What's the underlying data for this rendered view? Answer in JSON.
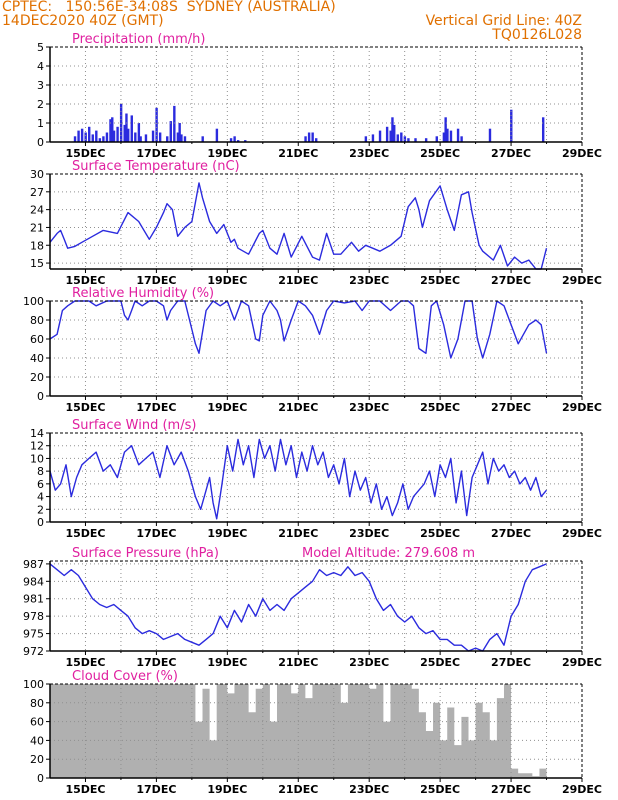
{
  "header": {
    "source": "CPTEC:",
    "location": "150:56E-34:08S  SYDNEY (AUSTRALIA)",
    "datetime": "14DEC2020 40Z (GMT)",
    "grid_note": "Vertical Grid Line: 40Z",
    "model": "TQ0126L028"
  },
  "colors": {
    "line": "#2b2bde",
    "bar": "#2b2bde",
    "cloud": "#b0b0b0",
    "title": "#e020a0",
    "header": "#e07000",
    "grid": "#909090",
    "frame": "#000000"
  },
  "time_axis": {
    "start": "14DEC",
    "end": "29DEC",
    "tick_labels": [
      "15DEC",
      "17DEC",
      "19DEC",
      "21DEC",
      "23DEC",
      "25DEC",
      "27DEC",
      "29DEC"
    ]
  },
  "chart_data": [
    {
      "type": "bar",
      "title": "Precipitation (mm/h)",
      "ylim": [
        0,
        5
      ],
      "yticks": [
        0,
        1,
        2,
        3,
        4,
        5
      ],
      "grid": true,
      "x": [
        0.7,
        0.8,
        0.9,
        1.0,
        1.1,
        1.2,
        1.3,
        1.4,
        1.5,
        1.6,
        1.7,
        1.75,
        1.8,
        1.9,
        2.0,
        2.1,
        2.15,
        2.2,
        2.3,
        2.4,
        2.5,
        2.55,
        2.7,
        2.9,
        3.0,
        3.1,
        3.3,
        3.4,
        3.5,
        3.6,
        3.65,
        3.7,
        3.8,
        4.3,
        4.7,
        5.1,
        5.2,
        5.3,
        5.5,
        7.2,
        7.3,
        7.4,
        7.5,
        8.9,
        9.1,
        9.3,
        9.5,
        9.6,
        9.65,
        9.7,
        9.8,
        9.9,
        10.0,
        10.1,
        10.3,
        10.6,
        10.9,
        11.1,
        11.15,
        11.2,
        11.3,
        11.5,
        11.6,
        12.4,
        13.0,
        13.9
      ],
      "values": [
        0.3,
        0.6,
        0.7,
        0.5,
        0.8,
        0.4,
        0.6,
        0.2,
        0.3,
        0.5,
        1.2,
        1.3,
        0.6,
        0.8,
        2.0,
        0.9,
        1.5,
        0.7,
        1.4,
        0.5,
        1.0,
        0.3,
        0.4,
        0.6,
        1.8,
        0.5,
        0.3,
        1.1,
        1.9,
        0.5,
        1.0,
        0.4,
        0.3,
        0.3,
        0.7,
        0.2,
        0.3,
        0.1,
        0.1,
        0.3,
        0.5,
        0.5,
        0.2,
        0.3,
        0.4,
        0.6,
        0.8,
        0.6,
        1.3,
        0.9,
        0.4,
        0.5,
        0.3,
        0.2,
        0.2,
        0.2,
        0.3,
        0.5,
        1.3,
        0.7,
        0.6,
        0.7,
        0.3,
        0.7,
        1.7,
        1.3
      ]
    },
    {
      "type": "line",
      "title": "Surface Temperature (nC)",
      "ylim": [
        14,
        30
      ],
      "yticks": [
        15,
        18,
        21,
        24,
        27,
        30
      ],
      "grid": true,
      "x": [
        0,
        0.2,
        0.3,
        0.4,
        0.5,
        0.7,
        0.9,
        1.2,
        1.5,
        1.9,
        2.2,
        2.5,
        2.8,
        3.0,
        3.2,
        3.3,
        3.45,
        3.6,
        3.8,
        4.0,
        4.2,
        4.3,
        4.5,
        4.7,
        4.9,
        5.1,
        5.2,
        5.3,
        5.6,
        5.9,
        6.0,
        6.2,
        6.4,
        6.6,
        6.8,
        7.1,
        7.4,
        7.6,
        7.8,
        8.0,
        8.2,
        8.5,
        8.7,
        8.9,
        9.1,
        9.3,
        9.6,
        9.9,
        10.1,
        10.3,
        10.4,
        10.5,
        10.7,
        11.0,
        11.2,
        11.4,
        11.6,
        11.8,
        11.9,
        12.1,
        12.2,
        12.5,
        12.7,
        12.9,
        13.1,
        13.3,
        13.5,
        13.7,
        13.85,
        14.0
      ],
      "values": [
        18.5,
        20.0,
        20.5,
        19.0,
        17.5,
        17.8,
        18.5,
        19.5,
        20.5,
        20.0,
        23.5,
        22.0,
        19.0,
        21.0,
        23.5,
        25.0,
        24.0,
        19.5,
        21.0,
        22.0,
        28.5,
        26.0,
        22.0,
        20.0,
        21.5,
        18.5,
        19.0,
        17.5,
        16.5,
        20.0,
        20.5,
        17.5,
        16.5,
        20.0,
        16.0,
        19.5,
        16.0,
        15.5,
        20.0,
        16.5,
        16.5,
        18.5,
        17.0,
        18.0,
        17.5,
        17.0,
        18.0,
        19.5,
        24.5,
        26.0,
        24.0,
        21.0,
        25.5,
        28.0,
        24.0,
        20.5,
        26.5,
        27.0,
        23.5,
        18.0,
        17.0,
        15.5,
        18.0,
        14.5,
        16.0,
        15.0,
        15.5,
        14.0,
        14.0,
        17.5
      ]
    },
    {
      "type": "line",
      "title": "Relative Humidity (%)",
      "ylim": [
        0,
        100
      ],
      "yticks": [
        0,
        20,
        40,
        60,
        80,
        100
      ],
      "grid": true,
      "x": [
        0,
        0.2,
        0.35,
        0.5,
        0.7,
        0.9,
        1.1,
        1.3,
        1.6,
        2.0,
        2.1,
        2.2,
        2.3,
        2.4,
        2.6,
        2.8,
        3.0,
        3.2,
        3.3,
        3.4,
        3.6,
        3.8,
        4.0,
        4.1,
        4.2,
        4.4,
        4.6,
        4.8,
        5.0,
        5.2,
        5.4,
        5.6,
        5.8,
        5.9,
        6.0,
        6.2,
        6.4,
        6.5,
        6.6,
        6.8,
        7.0,
        7.2,
        7.4,
        7.6,
        7.8,
        8.0,
        8.3,
        8.6,
        8.8,
        9.0,
        9.3,
        9.6,
        9.9,
        10.1,
        10.25,
        10.4,
        10.6,
        10.75,
        10.9,
        11.1,
        11.3,
        11.5,
        11.7,
        11.9,
        12.05,
        12.2,
        12.4,
        12.6,
        12.8,
        13.0,
        13.2,
        13.5,
        13.7,
        13.85,
        14.0
      ],
      "values": [
        60,
        65,
        90,
        95,
        100,
        100,
        100,
        95,
        100,
        100,
        85,
        80,
        90,
        100,
        95,
        100,
        100,
        95,
        80,
        90,
        100,
        100,
        70,
        55,
        45,
        90,
        100,
        95,
        100,
        80,
        100,
        95,
        60,
        58,
        85,
        100,
        90,
        80,
        58,
        80,
        100,
        95,
        85,
        65,
        90,
        100,
        98,
        100,
        90,
        100,
        100,
        90,
        100,
        100,
        95,
        50,
        45,
        95,
        100,
        75,
        40,
        60,
        100,
        100,
        60,
        40,
        65,
        100,
        95,
        75,
        55,
        75,
        80,
        75,
        45
      ]
    },
    {
      "type": "line",
      "title": "Surface Wind (m/s)",
      "ylim": [
        0,
        14
      ],
      "yticks": [
        0,
        2,
        4,
        6,
        8,
        10,
        12,
        14
      ],
      "grid": true,
      "x": [
        0,
        0.15,
        0.3,
        0.45,
        0.6,
        0.75,
        0.9,
        1.1,
        1.3,
        1.5,
        1.7,
        1.9,
        2.1,
        2.3,
        2.5,
        2.7,
        2.9,
        3.1,
        3.3,
        3.5,
        3.7,
        3.9,
        4.1,
        4.25,
        4.4,
        4.5,
        4.6,
        4.7,
        4.85,
        5.0,
        5.15,
        5.3,
        5.45,
        5.6,
        5.75,
        5.9,
        6.05,
        6.2,
        6.35,
        6.5,
        6.65,
        6.8,
        6.95,
        7.1,
        7.25,
        7.4,
        7.55,
        7.7,
        7.85,
        8.0,
        8.15,
        8.3,
        8.45,
        8.6,
        8.75,
        8.9,
        9.05,
        9.2,
        9.35,
        9.5,
        9.65,
        9.8,
        9.95,
        10.1,
        10.25,
        10.4,
        10.55,
        10.7,
        10.85,
        11.0,
        11.15,
        11.3,
        11.45,
        11.6,
        11.75,
        11.9,
        12.05,
        12.2,
        12.35,
        12.5,
        12.65,
        12.8,
        12.95,
        13.1,
        13.25,
        13.4,
        13.55,
        13.7,
        13.85,
        14.0
      ],
      "values": [
        8,
        5,
        6,
        9,
        4,
        7,
        9,
        10,
        11,
        8,
        9,
        7,
        11,
        12,
        9,
        10,
        11,
        7,
        12,
        9,
        11,
        8,
        4,
        2,
        5,
        7,
        3,
        0.5,
        6,
        12,
        8,
        13,
        9,
        12,
        7,
        13,
        10,
        12,
        8,
        13,
        9,
        12,
        7,
        11,
        8,
        12,
        9,
        11,
        7,
        9,
        6,
        10,
        4,
        8,
        5,
        7,
        3,
        6,
        2,
        4,
        1,
        3,
        6,
        2,
        4,
        5,
        6,
        8,
        4,
        9,
        7,
        10,
        3,
        8,
        1,
        7,
        9,
        11,
        6,
        10,
        8,
        9,
        7,
        8,
        6,
        7,
        5,
        7,
        4,
        5
      ]
    },
    {
      "type": "line",
      "title": "Surface Pressure (hPa)",
      "subtitle": "Model Altitude: 279.608 m",
      "ylim": [
        972,
        987.5
      ],
      "yticks": [
        972,
        975,
        978,
        981,
        984,
        987
      ],
      "grid": true,
      "x": [
        0,
        0.2,
        0.4,
        0.6,
        0.8,
        1.0,
        1.2,
        1.4,
        1.6,
        1.8,
        2.0,
        2.2,
        2.4,
        2.6,
        2.8,
        3.0,
        3.2,
        3.4,
        3.6,
        3.8,
        4.0,
        4.2,
        4.4,
        4.6,
        4.8,
        5.0,
        5.2,
        5.4,
        5.6,
        5.8,
        6.0,
        6.2,
        6.4,
        6.6,
        6.8,
        7.0,
        7.2,
        7.4,
        7.6,
        7.8,
        8.0,
        8.2,
        8.4,
        8.6,
        8.8,
        9.0,
        9.2,
        9.4,
        9.6,
        9.8,
        10.0,
        10.2,
        10.4,
        10.6,
        10.8,
        11.0,
        11.2,
        11.4,
        11.6,
        11.8,
        12.0,
        12.2,
        12.4,
        12.6,
        12.8,
        13.0,
        13.2,
        13.4,
        13.6,
        13.8,
        14.0
      ],
      "values": [
        987,
        986,
        985,
        986,
        985,
        983,
        981,
        980,
        979.5,
        980,
        979,
        978,
        976,
        975,
        975.5,
        975,
        974,
        974.5,
        975,
        974,
        973.5,
        973,
        974,
        975,
        978,
        976,
        979,
        977,
        980,
        978,
        981,
        979,
        980,
        979,
        981,
        982,
        983,
        984,
        986,
        985,
        985.5,
        985,
        986.5,
        985,
        985.5,
        984,
        981,
        979,
        980,
        978,
        977,
        978,
        976,
        975,
        975.5,
        974,
        974,
        973,
        973,
        972,
        972.5,
        972,
        974,
        975,
        973,
        978,
        980,
        984,
        986,
        986.5,
        987
      ]
    },
    {
      "type": "area",
      "title": "Cloud Cover (%)",
      "ylim": [
        0,
        100
      ],
      "yticks": [
        0,
        20,
        40,
        60,
        80,
        100
      ],
      "grid": true,
      "x": [
        0,
        0.4,
        0.8,
        1.2,
        1.6,
        2.0,
        2.4,
        2.8,
        3.2,
        3.6,
        4.0,
        4.1,
        4.3,
        4.5,
        4.7,
        5.0,
        5.2,
        5.4,
        5.6,
        5.8,
        6.0,
        6.2,
        6.4,
        6.6,
        6.8,
        7.0,
        7.2,
        7.4,
        7.6,
        7.8,
        8.0,
        8.2,
        8.4,
        8.6,
        8.8,
        9.0,
        9.2,
        9.4,
        9.6,
        9.8,
        10.0,
        10.2,
        10.4,
        10.6,
        10.8,
        11.0,
        11.2,
        11.4,
        11.6,
        11.8,
        12.0,
        12.2,
        12.4,
        12.6,
        12.8,
        13.0,
        13.2,
        13.4,
        13.6,
        13.8,
        14.0
      ],
      "values": [
        100,
        100,
        100,
        100,
        100,
        100,
        100,
        100,
        100,
        100,
        100,
        60,
        95,
        40,
        100,
        90,
        100,
        100,
        70,
        95,
        100,
        60,
        100,
        100,
        90,
        100,
        85,
        100,
        100,
        100,
        100,
        80,
        100,
        100,
        100,
        95,
        100,
        60,
        100,
        100,
        100,
        95,
        70,
        50,
        80,
        40,
        75,
        35,
        65,
        40,
        80,
        70,
        40,
        85,
        100,
        10,
        5,
        5,
        2,
        10,
        15
      ]
    }
  ]
}
